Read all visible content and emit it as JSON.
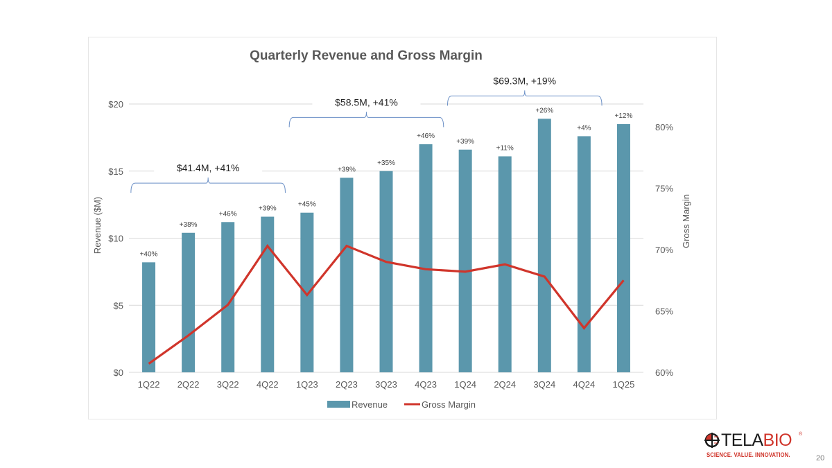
{
  "slide": {
    "page_number": "20",
    "logo": {
      "word_part1": "TELA",
      "word_part2": "BIO",
      "registered": "®",
      "tagline": "SCIENCE. VALUE. INNOVATION."
    }
  },
  "colors": {
    "bar": "#5b97ac",
    "line": "#d0352b",
    "bracket": "#6a8fc6",
    "grid": "#d9d9d9",
    "text": "#595959",
    "title": "#595959"
  },
  "chart_data": {
    "type": "bar",
    "title": "Quarterly Revenue and Gross Margin",
    "xlabel": "",
    "ylabel": "Revenue ($M)",
    "y2label": "Gross Margin",
    "categories": [
      "1Q22",
      "2Q22",
      "3Q22",
      "4Q22",
      "1Q23",
      "2Q23",
      "3Q23",
      "4Q23",
      "1Q24",
      "2Q24",
      "3Q24",
      "4Q24",
      "1Q25"
    ],
    "ylim": [
      0,
      20
    ],
    "y_ticks": [
      0,
      5,
      10,
      15,
      20
    ],
    "y_tick_labels": [
      "$0",
      "$5",
      "$10",
      "$15",
      "$20"
    ],
    "y2lim": [
      60,
      80
    ],
    "y2_ticks": [
      60,
      65,
      70,
      75,
      80
    ],
    "y2_tick_labels": [
      "60%",
      "65%",
      "70%",
      "75%",
      "80%"
    ],
    "grid": true,
    "legend_position": "bottom",
    "series": [
      {
        "name": "Revenue",
        "type": "bar",
        "axis": "left",
        "values": [
          8.2,
          10.4,
          11.2,
          11.6,
          11.9,
          14.5,
          15.0,
          17.0,
          16.6,
          16.1,
          18.9,
          17.6,
          18.5
        ],
        "data_labels": [
          "+40%",
          "+38%",
          "+46%",
          "+39%",
          "+45%",
          "+39%",
          "+35%",
          "+46%",
          "+39%",
          "+11%",
          "+26%",
          "+4%",
          "+12%"
        ]
      },
      {
        "name": "Gross Margin",
        "type": "line",
        "axis": "right",
        "values": [
          60.7,
          63.0,
          65.5,
          70.3,
          66.3,
          70.3,
          69.0,
          68.4,
          68.2,
          68.8,
          67.8,
          63.6,
          67.5
        ]
      }
    ],
    "annotations": [
      {
        "label": "$41.4M, +41%",
        "from": 0,
        "to": 3,
        "level": 14.1
      },
      {
        "label": "$58.5M, +41%",
        "from": 4,
        "to": 7,
        "level": 19.0
      },
      {
        "label": "$69.3M, +19%",
        "from": 8,
        "to": 11,
        "level": 20.6
      }
    ]
  }
}
